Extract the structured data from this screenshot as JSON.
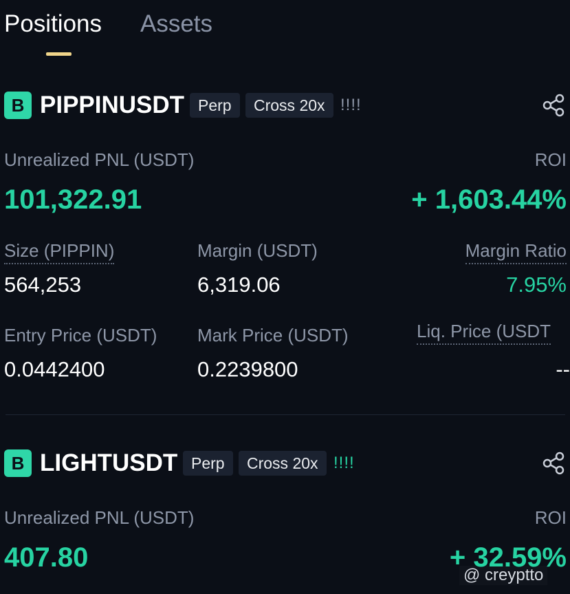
{
  "tabs": [
    "Positions",
    "Assets"
  ],
  "positions": [
    {
      "badge": "B",
      "symbol": "PIPPINUSDT",
      "tags": [
        "Perp",
        "Cross 20x"
      ],
      "signal": "!!!!",
      "pnl_label": "Unrealized PNL (USDT)",
      "pnl": "101,322.91",
      "roi_label": "ROI",
      "roi": "+ 1,603.44%",
      "fields": [
        {
          "label": "Size (PIPPIN)",
          "value": "564,253"
        },
        {
          "label": "Margin (USDT)",
          "value": "6,319.06"
        },
        {
          "label": "Margin Ratio",
          "value": "7.95%"
        },
        {
          "label": "Entry Price (USDT)",
          "value": "0.0442400"
        },
        {
          "label": "Mark Price (USDT)",
          "value": "0.2239800"
        },
        {
          "label": "Liq. Price (USDT",
          "value": "--"
        }
      ]
    },
    {
      "badge": "B",
      "symbol": "LIGHTUSDT",
      "tags": [
        "Perp",
        "Cross 20x"
      ],
      "signal": "!!!!",
      "pnl_label": "Unrealized PNL (USDT)",
      "pnl": "407.80",
      "roi_label": "ROI",
      "roi": "+ 32.59%",
      "fields": []
    }
  ],
  "watermark": "@ creyptto"
}
